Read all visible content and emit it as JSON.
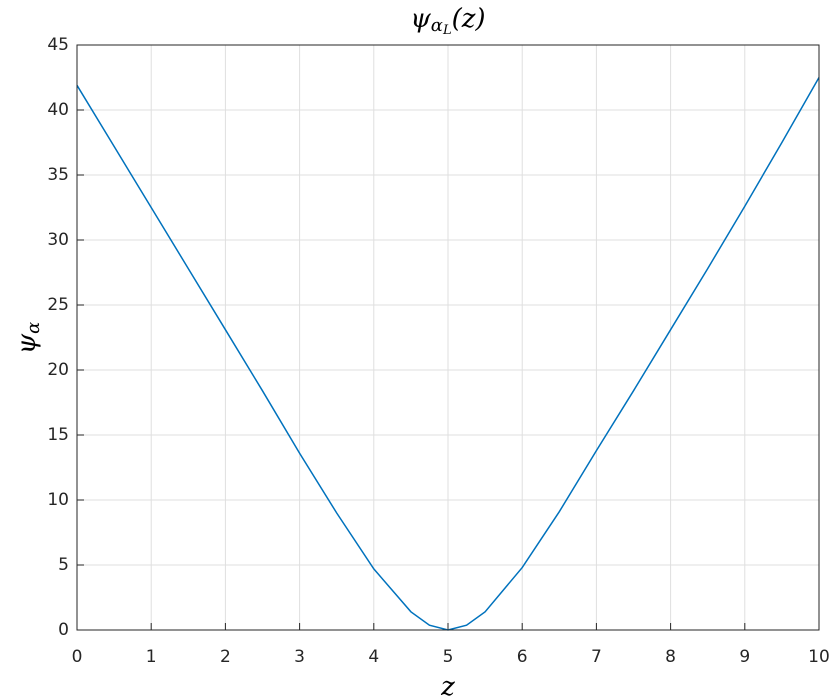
{
  "chart_data": {
    "type": "line",
    "title": {
      "base": "ψ",
      "sub": "α",
      "subsub": "L",
      "tail": "(z)"
    },
    "x_label": "z",
    "y_label": {
      "base": "ψ",
      "sub": "α"
    },
    "x": [
      0,
      0.5,
      1,
      1.5,
      2,
      2.5,
      3,
      3.5,
      4,
      4.5,
      4.75,
      5,
      5.25,
      5.5,
      6,
      6.5,
      7,
      7.5,
      8,
      8.5,
      9,
      9.5,
      10
    ],
    "series": [
      {
        "color": "#0072bd",
        "values": [
          41.9,
          37.2,
          32.5,
          27.8,
          23.1,
          18.4,
          13.6,
          9.0,
          4.7,
          1.4,
          0.37,
          0,
          0.37,
          1.4,
          4.8,
          9.1,
          13.8,
          18.4,
          23.1,
          27.8,
          32.6,
          37.5,
          42.5
        ]
      }
    ],
    "xlim": [
      0,
      10
    ],
    "xticks": [
      0,
      1,
      2,
      3,
      4,
      5,
      6,
      7,
      8,
      9,
      10
    ],
    "ylim": [
      0,
      45
    ],
    "yticks": [
      0,
      5,
      10,
      15,
      20,
      25,
      30,
      35,
      40,
      45
    ],
    "grid": true
  }
}
